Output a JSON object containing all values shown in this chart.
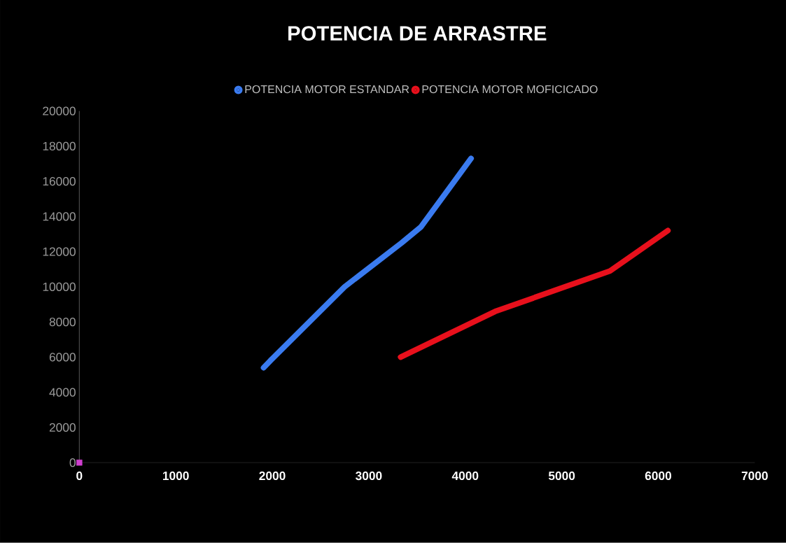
{
  "chart_data": {
    "type": "line",
    "title": "POTENCIA DE ARRASTRE",
    "xlim": [
      0,
      7000
    ],
    "xticks": [
      0,
      1000,
      2000,
      3000,
      4000,
      5000,
      6000,
      7000
    ],
    "ylim": [
      0,
      20000
    ],
    "yticks": [
      0,
      2000,
      4000,
      6000,
      8000,
      10000,
      12000,
      14000,
      16000,
      18000,
      20000
    ],
    "legend": "top",
    "grid": false,
    "marker": "none",
    "series": [
      {
        "name": "POTENCIA MOTOR ESTANDAR",
        "color": "#3a7bf0",
        "x": [
          1910,
          1980,
          2750,
          3340,
          3540,
          4060
        ],
        "values": [
          5400,
          5800,
          10000,
          12500,
          13400,
          17300
        ]
      },
      {
        "name": "POTENCIA MOTOR MOFICICADO",
        "color": "#e8101c",
        "x": [
          3330,
          4310,
          5500,
          6100
        ],
        "values": [
          6000,
          8600,
          10900,
          13200
        ]
      },
      {
        "type": "scatter",
        "marker": "square",
        "color": "#d040d0",
        "x": [
          0
        ],
        "values": [
          0
        ]
      }
    ]
  }
}
